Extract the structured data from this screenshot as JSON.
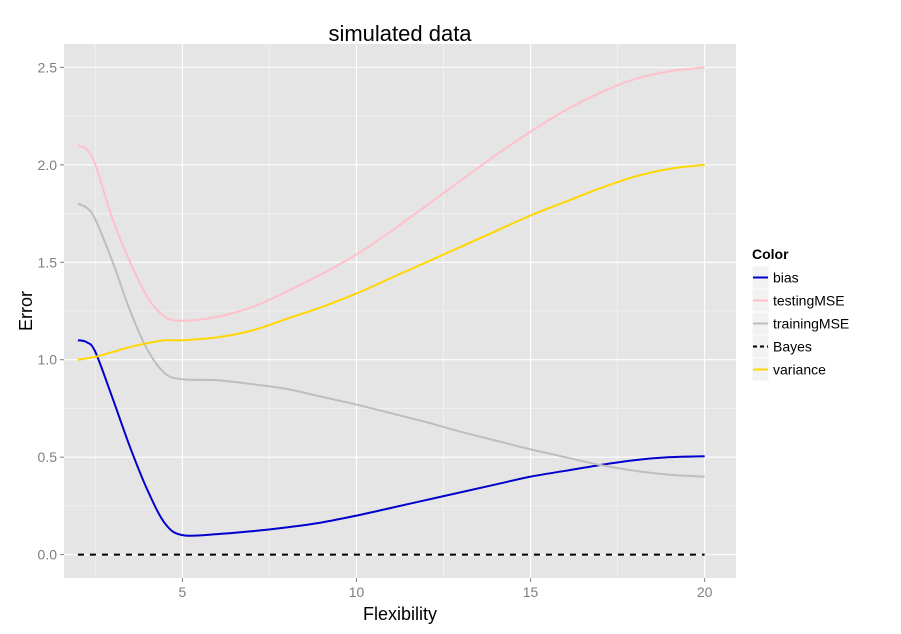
{
  "chart_data": {
    "type": "line",
    "title": "simulated data",
    "xlabel": "Flexibility",
    "ylabel": "Error",
    "xlim": [
      1.6,
      20.9
    ],
    "ylim": [
      -0.12,
      2.62
    ],
    "x_ticks": [
      5,
      10,
      15,
      20
    ],
    "x_tick_labels": [
      "5",
      "10",
      "15",
      "20"
    ],
    "y_ticks": [
      0,
      0.5,
      1,
      1.5,
      2,
      2.5
    ],
    "y_tick_labels": [
      "0.0",
      "0.5",
      "1.0",
      "1.5",
      "2.0",
      "2.5"
    ],
    "grid": true,
    "legend_title": "Color",
    "legend_position": "right",
    "background_color": "#e5e5e5",
    "grid_color": "#ffffff",
    "series": [
      {
        "name": "bias",
        "color": "#0000cd",
        "dash": "solid",
        "x": [
          2,
          2.25,
          2.5,
          3,
          3.5,
          4,
          4.5,
          5,
          6,
          7,
          8,
          9,
          10,
          11,
          12,
          13,
          14,
          15,
          16,
          17,
          18,
          19,
          20
        ],
        "y": [
          1.1,
          1.09,
          1.04,
          0.8,
          0.55,
          0.33,
          0.16,
          0.1,
          0.105,
          0.12,
          0.14,
          0.165,
          0.2,
          0.24,
          0.28,
          0.32,
          0.36,
          0.4,
          0.43,
          0.46,
          0.485,
          0.5,
          0.505
        ]
      },
      {
        "name": "testingMSE",
        "color": "#ffc0cb",
        "dash": "solid",
        "x": [
          2,
          2.25,
          2.5,
          3,
          3.5,
          4,
          4.5,
          5,
          6,
          7,
          8,
          9,
          10,
          11,
          12,
          13,
          14,
          15,
          16,
          17,
          18,
          19,
          20
        ],
        "y": [
          2.1,
          2.08,
          2.0,
          1.72,
          1.5,
          1.32,
          1.22,
          1.2,
          1.22,
          1.27,
          1.35,
          1.44,
          1.54,
          1.66,
          1.79,
          1.92,
          2.05,
          2.17,
          2.28,
          2.37,
          2.44,
          2.48,
          2.5
        ]
      },
      {
        "name": "trainingMSE",
        "color": "#bebebe",
        "dash": "solid",
        "x": [
          2,
          2.25,
          2.5,
          3,
          3.5,
          4,
          4.5,
          5,
          6,
          7,
          8,
          9,
          10,
          11,
          12,
          13,
          14,
          15,
          16,
          17,
          18,
          19,
          20
        ],
        "y": [
          1.8,
          1.78,
          1.72,
          1.5,
          1.25,
          1.05,
          0.93,
          0.9,
          0.895,
          0.875,
          0.85,
          0.81,
          0.77,
          0.725,
          0.68,
          0.63,
          0.585,
          0.54,
          0.5,
          0.46,
          0.43,
          0.41,
          0.4
        ]
      },
      {
        "name": "Bayes",
        "color": "#000000",
        "dash": "dashed",
        "x": [
          2,
          20
        ],
        "y": [
          0,
          0
        ]
      },
      {
        "name": "variance",
        "color": "#ffd700",
        "dash": "solid",
        "x": [
          2,
          2.5,
          3,
          3.5,
          4,
          4.5,
          5,
          6,
          7,
          8,
          9,
          10,
          11,
          12,
          13,
          14,
          15,
          16,
          17,
          18,
          19,
          20
        ],
        "y": [
          1.0,
          1.015,
          1.04,
          1.065,
          1.085,
          1.1,
          1.1,
          1.115,
          1.15,
          1.21,
          1.27,
          1.34,
          1.42,
          1.5,
          1.58,
          1.66,
          1.74,
          1.81,
          1.88,
          1.94,
          1.98,
          2.0
        ]
      }
    ]
  }
}
